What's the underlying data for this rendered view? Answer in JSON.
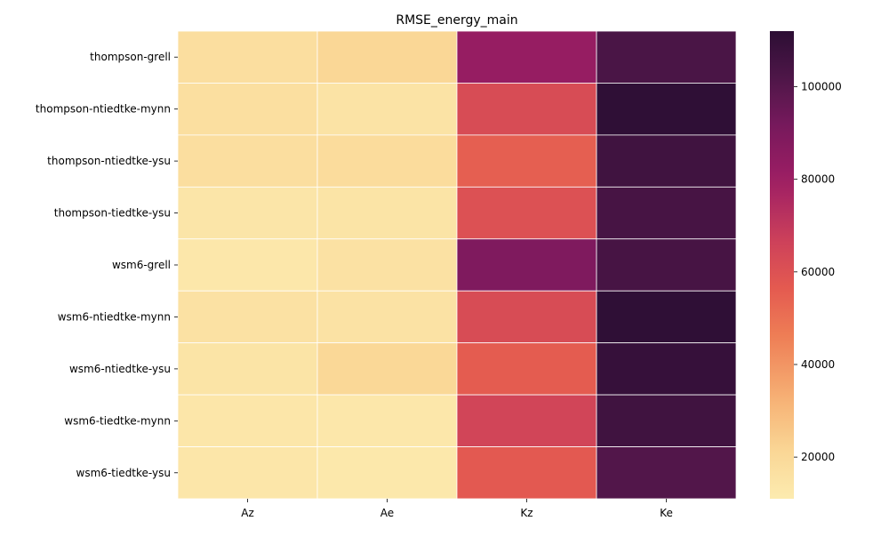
{
  "chart_data": {
    "type": "heatmap",
    "title": "RMSE_energy_main",
    "x_categories": [
      "Az",
      "Ae",
      "Kz",
      "Ke"
    ],
    "y_categories": [
      "thompson-grell",
      "thompson-ntiedtke-mynn",
      "thompson-ntiedtke-ysu",
      "thompson-tiedtke-ysu",
      "wsm6-grell",
      "wsm6-ntiedtke-mynn",
      "wsm6-ntiedtke-ysu",
      "wsm6-tiedtke-mynn",
      "wsm6-tiedtke-ysu"
    ],
    "values": [
      [
        17500,
        21000,
        82000,
        103000
      ],
      [
        17000,
        15000,
        62000,
        111000
      ],
      [
        17500,
        18500,
        55000,
        106000
      ],
      [
        14000,
        14500,
        60000,
        104000
      ],
      [
        13000,
        16000,
        89000,
        104000
      ],
      [
        16000,
        15500,
        62000,
        111000
      ],
      [
        14500,
        20500,
        56000,
        109000
      ],
      [
        13500,
        13000,
        65000,
        106000
      ],
      [
        13500,
        12500,
        57000,
        101000
      ]
    ],
    "colormap": "flare_r",
    "vmin": 11000,
    "vmax": 112000,
    "colorbar_ticks": [
      "20000",
      "40000",
      "60000",
      "80000",
      "100000"
    ],
    "colorbar_tick_values": [
      20000,
      40000,
      60000,
      80000,
      100000
    ],
    "colorbar_location": "right",
    "grid_lines": "white"
  }
}
